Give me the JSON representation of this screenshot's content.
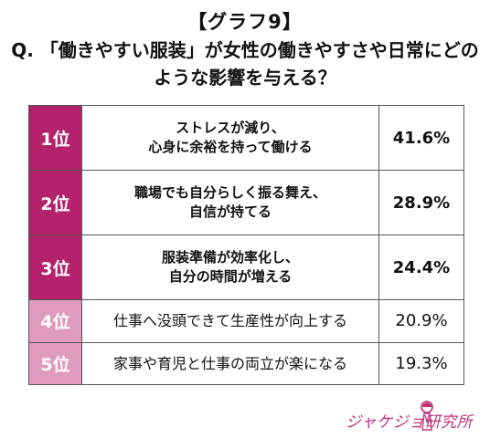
{
  "header": {
    "graph_label": "【グラフ9】",
    "question": "Q. 「働きやすい服装」が女性の働きやすさや日常にどのような影響を与える？"
  },
  "colors": {
    "rank_top": "#b3226a",
    "rank_low": "#df9bbd",
    "logo": "#c0317a"
  },
  "chart_data": {
    "type": "table",
    "unit": "%",
    "rows": [
      {
        "rank": "1位",
        "label_lines": [
          "ストレスが減り、",
          "心身に余裕を持って働ける"
        ],
        "value": 41.6,
        "value_label": "41.6%",
        "highlight": true
      },
      {
        "rank": "2位",
        "label_lines": [
          "職場でも自分らしく振る舞え、",
          "自信が持てる"
        ],
        "value": 28.9,
        "value_label": "28.9%",
        "highlight": true
      },
      {
        "rank": "3位",
        "label_lines": [
          "服装準備が効率化し、",
          "自分の時間が増える"
        ],
        "value": 24.4,
        "value_label": "24.4%",
        "highlight": true
      },
      {
        "rank": "4位",
        "label_lines": [
          "仕事へ没頭できて生産性が向上する"
        ],
        "value": 20.9,
        "value_label": "20.9%",
        "highlight": false
      },
      {
        "rank": "5位",
        "label_lines": [
          "家事や育児と仕事の両立が楽になる"
        ],
        "value": 19.3,
        "value_label": "19.3%",
        "highlight": false
      }
    ]
  },
  "logo": {
    "text": "ジャケジョ研究所",
    "icon": "woman-silhouette-icon"
  }
}
